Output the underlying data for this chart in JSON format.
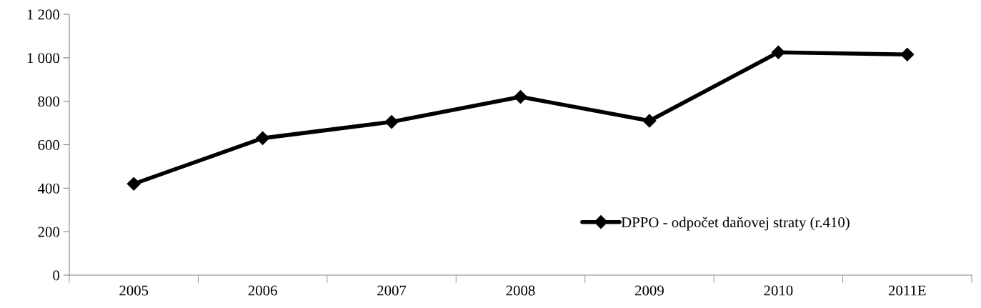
{
  "chart_data": {
    "type": "line",
    "categories": [
      "2005",
      "2006",
      "2007",
      "2008",
      "2009",
      "2010",
      "2011E"
    ],
    "series": [
      {
        "name": "DPPO - odpočet daňovej straty (r.410)",
        "color": "#000000",
        "values": [
          420,
          630,
          705,
          820,
          710,
          1025,
          1015
        ]
      }
    ],
    "ylim": [
      0,
      1200
    ],
    "yticks": [
      0,
      200,
      400,
      600,
      800,
      {
        "value": 1000,
        "label": "1 000"
      },
      {
        "value": 1200,
        "label": "1 200"
      }
    ],
    "grid": false,
    "legend": "bottom right",
    "marker": "diamond",
    "line_style": "solid"
  }
}
